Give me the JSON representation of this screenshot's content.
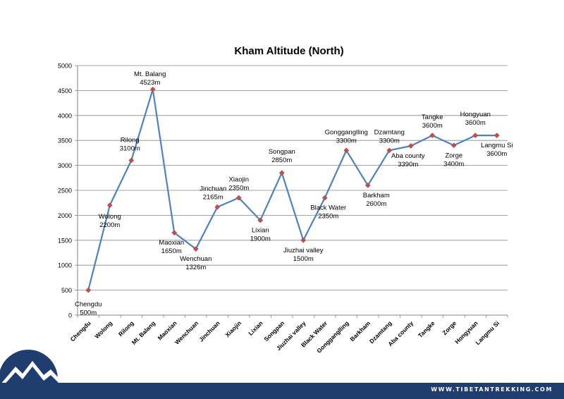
{
  "chart_data": {
    "type": "line",
    "title": "Kham Altitude (North)",
    "xlabel": "",
    "ylabel": "",
    "ylim": [
      0,
      5000
    ],
    "yticks": [
      0,
      500,
      1000,
      1500,
      2000,
      2500,
      3000,
      3500,
      4000,
      4500,
      5000
    ],
    "grid": true,
    "legend": "none",
    "categories": [
      "Chengdu",
      "Wolong",
      "Rilong",
      "Mt. Balang",
      "Maoxian",
      "Wenchuan",
      "Jinchuan",
      "Xiaojin",
      "Lixian",
      "Songpan",
      "Jiuzhai valley",
      "Black Water",
      "Gongganglling",
      "Barkham",
      "Dzamtang",
      "Aba county",
      "Tangke",
      "Zorge",
      "Hongyuan",
      "Langmu Si"
    ],
    "series": [
      {
        "values": [
          500,
          2200,
          3100,
          4523,
          1650,
          1326,
          2165,
          2350,
          1900,
          2850,
          1500,
          2350,
          3300,
          2600,
          3300,
          3390,
          3600,
          3400,
          3600,
          3600
        ]
      }
    ],
    "annotations": [
      {
        "name": "Chengdu",
        "value": "500m"
      },
      {
        "name": "Wolong",
        "value": "2200m"
      },
      {
        "name": "Rilong",
        "value": "3100m"
      },
      {
        "name": "Mt. Balang",
        "value": "4523m"
      },
      {
        "name": "Maoxian",
        "value": "1650m"
      },
      {
        "name": "Wenchuan",
        "value": "1326m"
      },
      {
        "name": "Jinchuan",
        "value": "2165m"
      },
      {
        "name": "Xiaojin",
        "value": "2350m"
      },
      {
        "name": "Lixian",
        "value": "1900m"
      },
      {
        "name": "Songpan",
        "value": "2850m"
      },
      {
        "name": "Jiuzhai valley",
        "value": "1500m"
      },
      {
        "name": "Black Water",
        "value": "2350m"
      },
      {
        "name": "Gongganglling",
        "value": "3300m"
      },
      {
        "name": "Barkham",
        "value": "2600m"
      },
      {
        "name": "Dzamtang",
        "value": "3300m"
      },
      {
        "name": "Aba county",
        "value": "3390m"
      },
      {
        "name": "Tangke",
        "value": "3600m"
      },
      {
        "name": "Zorge",
        "value": "3400m"
      },
      {
        "name": "Hongyuan",
        "value": "3600m"
      },
      {
        "name": "Langmu Si",
        "value": "3600m"
      }
    ],
    "colors": {
      "line": "#4f81bd",
      "marker": "#c0504d",
      "grid": "#868686",
      "axis": "#868686",
      "text": "#000000"
    }
  },
  "footer": {
    "url": "WWW.TIBETANTREKKING.COM",
    "color": "#1f3d6e"
  },
  "logo": {
    "icon": "mountain-logo-icon"
  }
}
